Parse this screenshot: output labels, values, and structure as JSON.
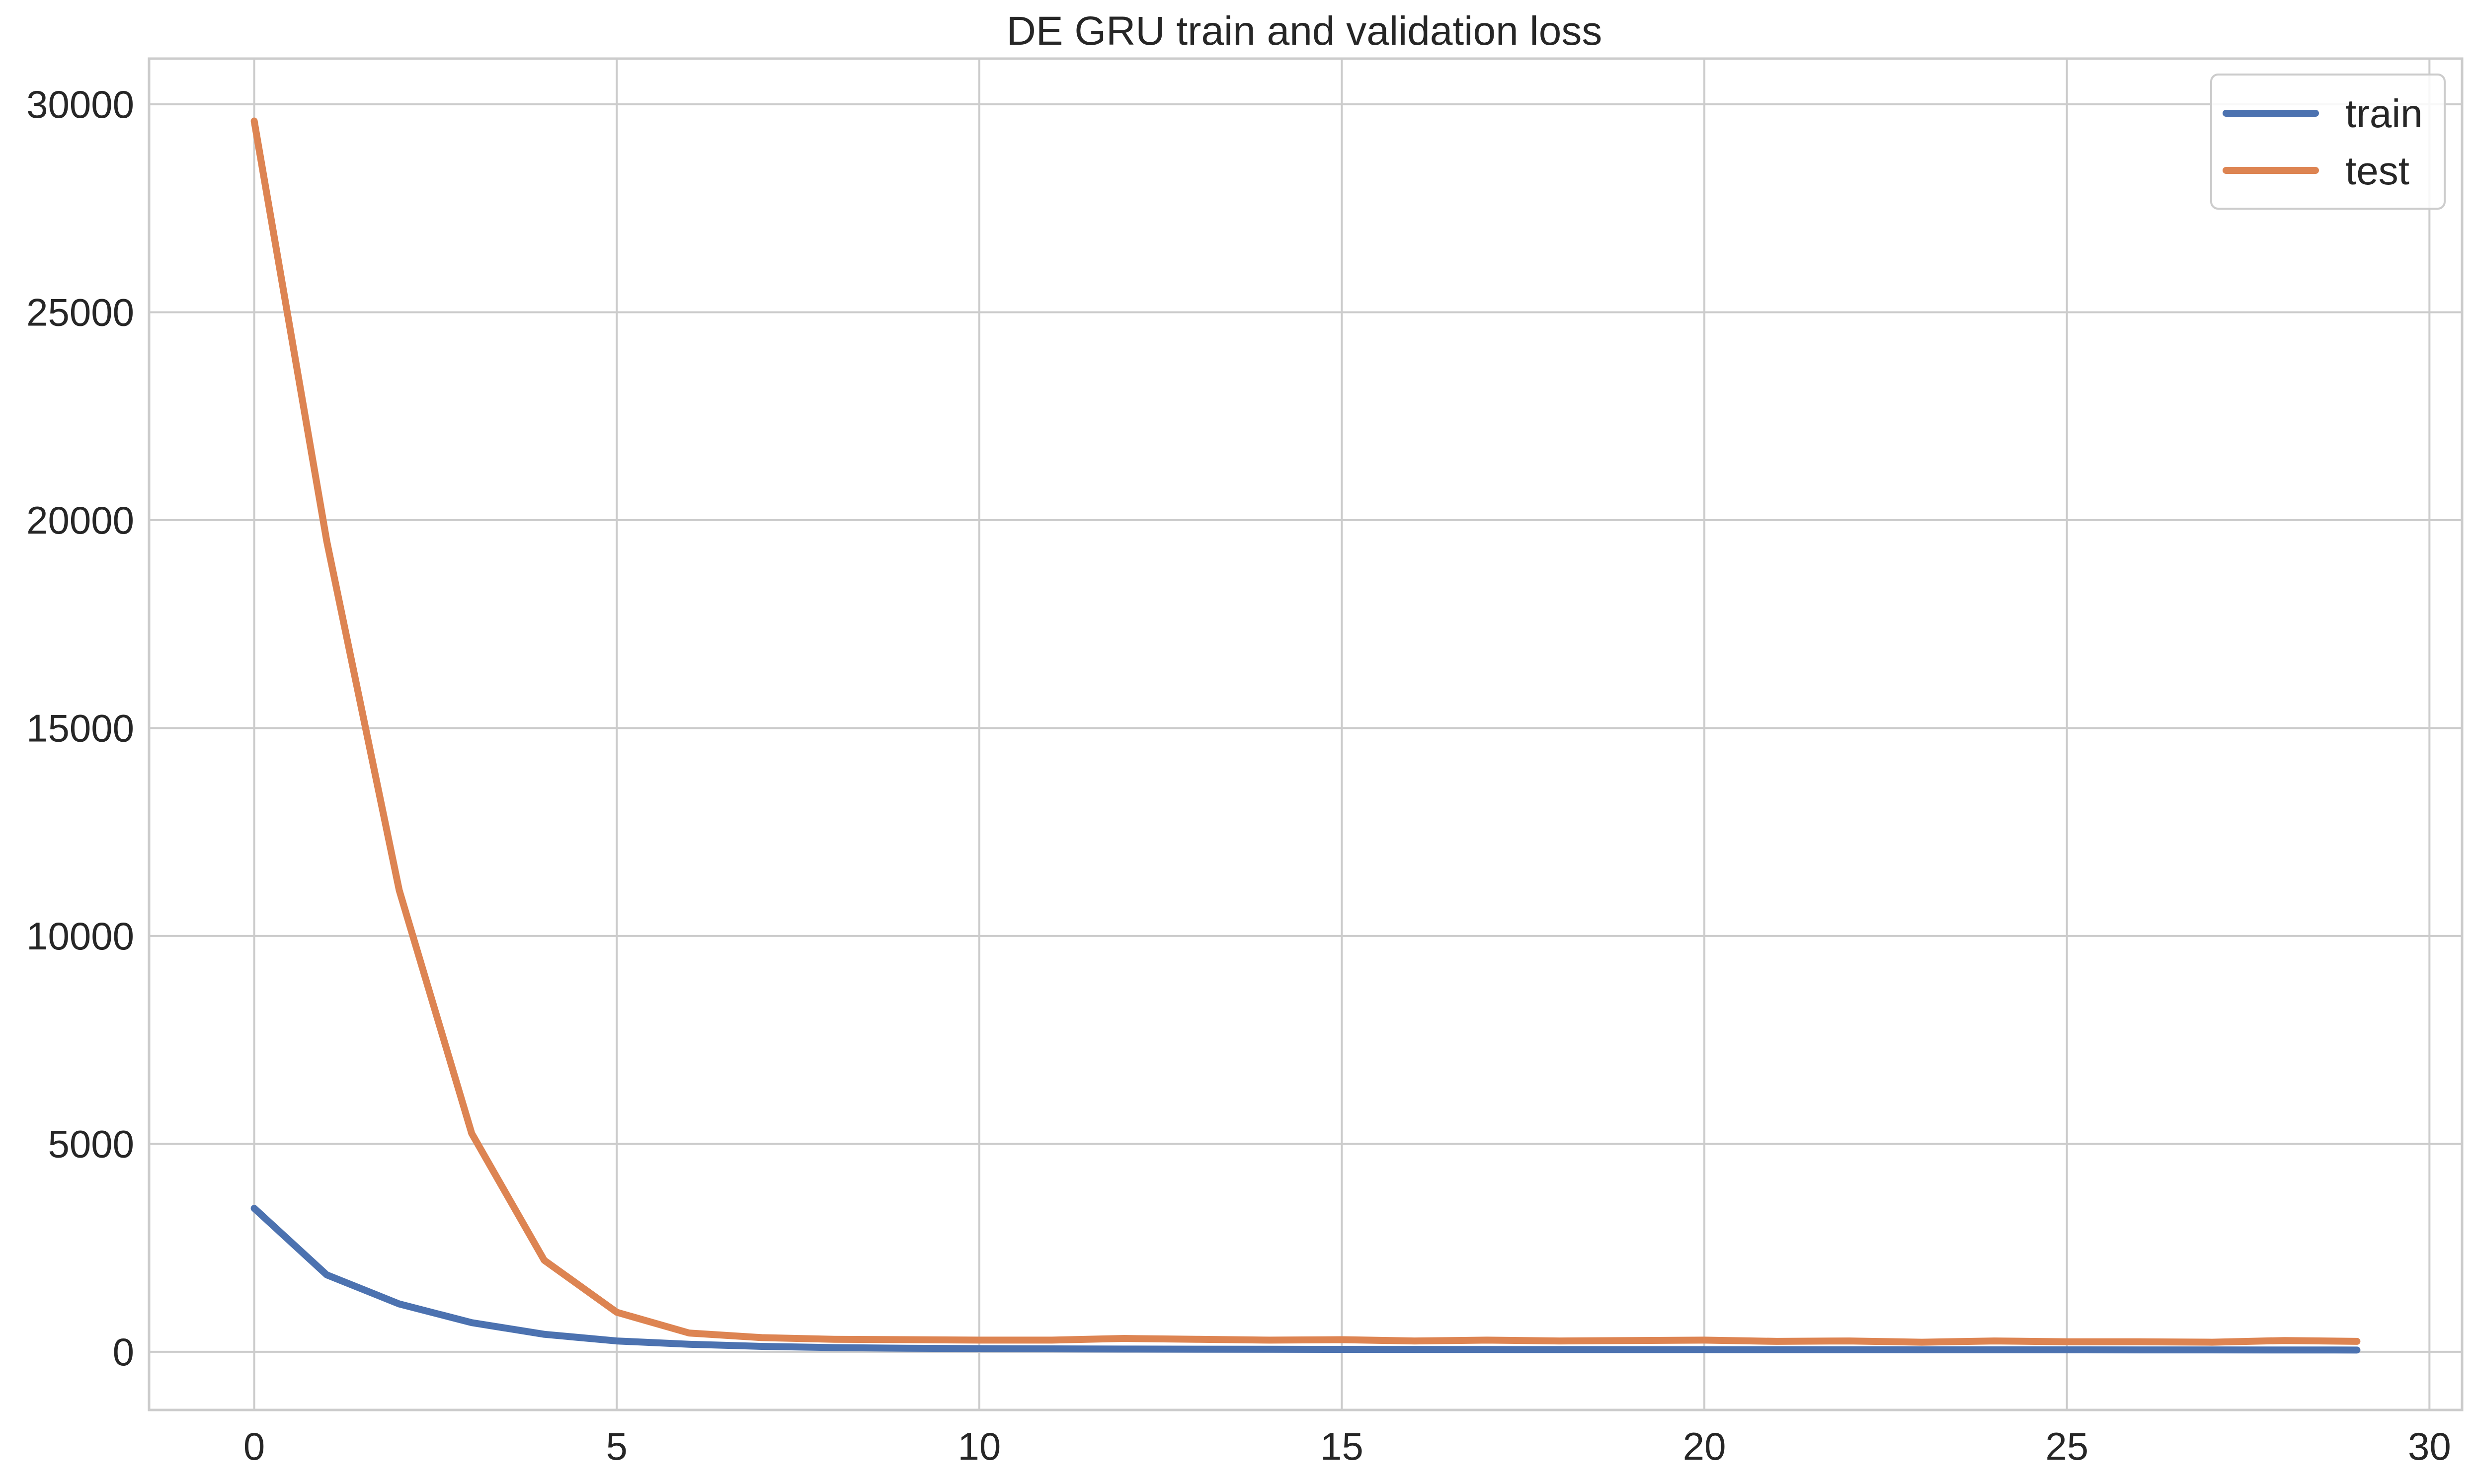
{
  "chart_data": {
    "type": "line",
    "title": "DE GRU train and validation loss",
    "xlabel": "",
    "ylabel": "",
    "xlim": [
      -1.45,
      30.45
    ],
    "ylim": [
      -1400,
      31100
    ],
    "xticks": [
      0,
      5,
      10,
      15,
      20,
      25,
      30
    ],
    "yticks": [
      0,
      5000,
      10000,
      15000,
      20000,
      25000,
      30000
    ],
    "grid": true,
    "legend_position": "top-right",
    "x": [
      0,
      1,
      2,
      3,
      4,
      5,
      6,
      7,
      8,
      9,
      10,
      11,
      12,
      13,
      14,
      15,
      16,
      17,
      18,
      19,
      20,
      21,
      22,
      23,
      24,
      25,
      26,
      27,
      28,
      29
    ],
    "series": [
      {
        "name": "train",
        "color": "#4c72b0",
        "values": [
          3450,
          1850,
          1150,
          700,
          420,
          260,
          180,
          130,
          100,
          85,
          75,
          70,
          65,
          62,
          60,
          58,
          56,
          54,
          53,
          52,
          51,
          50,
          49,
          48,
          47,
          46,
          45,
          44,
          43,
          42
        ]
      },
      {
        "name": "test",
        "color": "#dd8452",
        "values": [
          29600,
          19500,
          11100,
          5250,
          2200,
          950,
          450,
          340,
          300,
          290,
          280,
          280,
          320,
          300,
          280,
          290,
          260,
          280,
          260,
          270,
          280,
          250,
          260,
          230,
          260,
          240,
          240,
          230,
          270,
          250
        ]
      }
    ]
  }
}
